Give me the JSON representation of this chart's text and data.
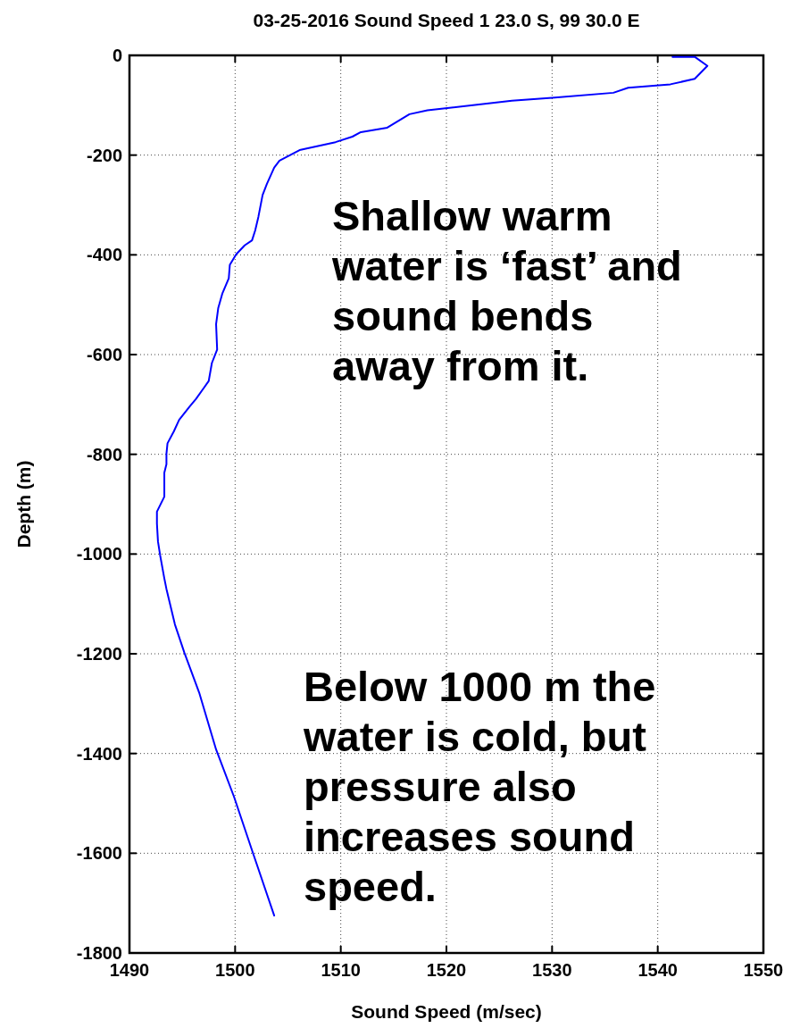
{
  "chart_data": {
    "type": "line",
    "title": "03-25-2016 Sound Speed 1 23.0 S, 99 30.0 E",
    "xlabel": "Sound Speed (m/sec)",
    "ylabel": "Depth (m)",
    "series": [
      {
        "color": "#0000ff",
        "x": [
          1541.4,
          1543.5,
          1544.7,
          1543.5,
          1541.2,
          1537.2,
          1535.8,
          1530.0,
          1526.2,
          1518.2,
          1516.5,
          1514.4,
          1511.9,
          1511.1,
          1509.5,
          1506.1,
          1504.2,
          1503.7,
          1503.0,
          1502.6,
          1502.2,
          1501.9,
          1501.6,
          1500.9,
          1500.1,
          1499.5,
          1499.4,
          1498.8,
          1498.4,
          1498.2,
          1498.3,
          1497.8,
          1497.5,
          1497.0,
          1496.3,
          1495.7,
          1494.7,
          1494.2,
          1493.6,
          1493.5,
          1493.5,
          1493.3,
          1493.3,
          1492.6,
          1492.6,
          1492.7,
          1492.9,
          1493.3,
          1493.5,
          1494.3,
          1495.2,
          1496.6,
          1498.2,
          1499.9,
          1501.6,
          1503.7
        ],
        "values": [
          -3,
          -3,
          -21,
          -47,
          -58,
          -65,
          -75,
          -85,
          -91,
          -110,
          -118,
          -145,
          -154,
          -163,
          -174,
          -190,
          -211,
          -225,
          -258,
          -280,
          -324,
          -351,
          -371,
          -381,
          -399,
          -420,
          -447,
          -477,
          -507,
          -539,
          -590,
          -617,
          -653,
          -668,
          -689,
          -704,
          -731,
          -754,
          -778,
          -799,
          -820,
          -837,
          -885,
          -915,
          -939,
          -975,
          -1002,
          -1049,
          -1070,
          -1141,
          -1198,
          -1278,
          -1392,
          -1487,
          -1594,
          -1725
        ]
      }
    ],
    "xlim": [
      1490,
      1550
    ],
    "xticks": [
      1490,
      1500,
      1510,
      1520,
      1530,
      1540,
      1550
    ],
    "ylim": [
      -1800,
      0
    ],
    "yticks": [
      -1800,
      -1600,
      -1400,
      -1200,
      -1000,
      -800,
      -600,
      -400,
      -200,
      0
    ],
    "grid": true,
    "marker": "none",
    "line_style": "solid",
    "annotations": [
      "Shallow warm\nwater is ‘fast’ and\nsound bends\naway from it.",
      "Below 1000 m the\nwater is cold, but\npressure also\nincreases sound\nspeed."
    ]
  }
}
